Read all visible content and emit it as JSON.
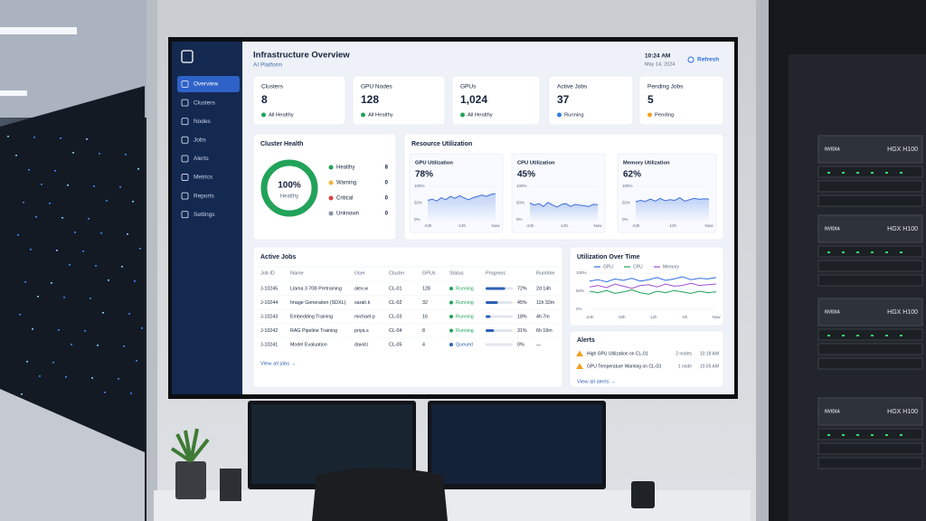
{
  "header": {
    "title": "Infrastructure Overview",
    "subtitle": "AI Platform",
    "time": "10:24 AM",
    "date": "May 14, 2024",
    "refresh": "Refresh"
  },
  "sidebar": {
    "items": [
      "Overview",
      "Clusters",
      "Nodes",
      "Jobs",
      "Alerts",
      "Metrics",
      "Reports",
      "Settings"
    ]
  },
  "stats": [
    {
      "label": "Clusters",
      "value": "8",
      "status": "All Healthy",
      "color": "#22a35a"
    },
    {
      "label": "GPU Nodes",
      "value": "128",
      "status": "All Healthy",
      "color": "#22a35a"
    },
    {
      "label": "GPUs",
      "value": "1,024",
      "status": "All Healthy",
      "color": "#22a35a"
    },
    {
      "label": "Active Jobs",
      "value": "37",
      "status": "Running",
      "color": "#2f7de1"
    },
    {
      "label": "Pending Jobs",
      "value": "5",
      "status": "Pending",
      "color": "#f0a020"
    }
  ],
  "cluster_health": {
    "title": "Cluster Health",
    "percent": {
      "value": 100,
      "label": "100%"
    },
    "caption": "Healthy",
    "color": "#22a35a",
    "legend": [
      {
        "name": "Healthy",
        "count": "8",
        "color": "#22a35a"
      },
      {
        "name": "Warning",
        "count": "0",
        "color": "#f0b43c"
      },
      {
        "name": "Critical",
        "count": "0",
        "color": "#e04040"
      },
      {
        "name": "Unknown",
        "count": "0",
        "color": "#8a93a6"
      }
    ]
  },
  "resource_utilization": {
    "title": "Resource Utilization",
    "panels": [
      {
        "title": "GPU Utilization",
        "value": "78%",
        "ylim": [
          0,
          100
        ],
        "yticks": [
          {
            "value": 100,
            "label": "100%"
          },
          {
            "value": 50,
            "label": "50%"
          },
          {
            "value": 0,
            "label": "0%"
          }
        ],
        "xlabels": [
          "-24h",
          "-12h",
          "Now"
        ],
        "values": [
          58,
          62,
          56,
          66,
          60,
          70,
          64,
          72,
          66,
          60,
          66,
          70,
          74,
          70,
          76,
          78
        ]
      },
      {
        "title": "CPU Utilization",
        "value": "45%",
        "ylim": [
          0,
          100
        ],
        "yticks": [
          {
            "value": 100,
            "label": "100%"
          },
          {
            "value": 50,
            "label": "50%"
          },
          {
            "value": 0,
            "label": "0%"
          }
        ],
        "xlabels": [
          "-24h",
          "-12h",
          "Now"
        ],
        "values": [
          50,
          44,
          48,
          40,
          52,
          44,
          38,
          46,
          48,
          40,
          46,
          44,
          42,
          40,
          46,
          45
        ]
      },
      {
        "title": "Memory Utilization",
        "value": "62%",
        "ylim": [
          0,
          100
        ],
        "yticks": [
          {
            "value": 100,
            "label": "100%"
          },
          {
            "value": 50,
            "label": "50%"
          },
          {
            "value": 0,
            "label": "0%"
          }
        ],
        "xlabels": [
          "-24h",
          "-12h",
          "Now"
        ],
        "values": [
          54,
          58,
          55,
          62,
          56,
          64,
          57,
          60,
          58,
          66,
          56,
          60,
          64,
          61,
          63,
          62
        ]
      }
    ]
  },
  "active_jobs": {
    "title": "Active Jobs",
    "columns": [
      "Job ID",
      "Name",
      "User",
      "Cluster",
      "GPUs",
      "Status",
      "Progress",
      "Runtime"
    ],
    "rows": [
      [
        "J-10245",
        "Llama 3 70B Pretraining",
        "alex.w",
        "CL-01",
        "128",
        "Running",
        "2d 14h"
      ],
      [
        "J-10244",
        "Image Generation (SDXL)",
        "sarah.k",
        "CL-02",
        "32",
        "Running",
        "11h 32m"
      ],
      [
        "J-10243",
        "Embedding Training",
        "michael.p",
        "CL-03",
        "16",
        "Running",
        "4h 7m"
      ],
      [
        "J-10242",
        "RAG Pipeline Training",
        "priya.s",
        "CL-04",
        "8",
        "Running",
        "6h 19m"
      ],
      [
        "J-10241",
        "Model Evaluation",
        "david.l",
        "CL-05",
        "4",
        "Queued",
        "—"
      ]
    ],
    "status_colors": [
      "#22a35a",
      "#22a35a",
      "#22a35a",
      "#22a35a",
      "#2f5fb5"
    ],
    "progress": [
      72,
      45,
      18,
      31,
      0
    ],
    "progress_labels": [
      "72%",
      "45%",
      "18%",
      "31%",
      "0%"
    ],
    "link": "View all jobs →"
  },
  "utilization_over_time": {
    "type": "line",
    "title": "Utilization Over Time",
    "ylim": [
      0,
      100
    ],
    "yticks": [
      {
        "value": 100,
        "label": "100%"
      },
      {
        "value": 50,
        "label": "50%"
      },
      {
        "value": 0,
        "label": "0%"
      }
    ],
    "xlabels": [
      "-24h",
      "-18h",
      "-12h",
      "-6h",
      "Now"
    ],
    "series": [
      {
        "name": "GPU",
        "color": "#2f6fe0",
        "values": [
          78,
          82,
          76,
          84,
          80,
          86,
          78,
          82,
          88,
          80,
          84,
          90,
          82,
          86,
          84,
          88
        ]
      },
      {
        "name": "CPU",
        "color": "#22a35a",
        "values": [
          50,
          46,
          52,
          44,
          48,
          54,
          46,
          42,
          50,
          46,
          52,
          48,
          44,
          50,
          46,
          48
        ]
      },
      {
        "name": "Memory",
        "color": "#a050d0",
        "values": [
          62,
          66,
          60,
          70,
          64,
          58,
          66,
          68,
          62,
          70,
          64,
          66,
          72,
          66,
          68,
          70
        ]
      }
    ]
  },
  "alerts": {
    "title": "Alerts",
    "items": [
      {
        "text": "High GPU Utilization on CL-01",
        "count": "2 nodes",
        "time": "10:18 AM"
      },
      {
        "text": "GPU Temperature Warning on CL-03",
        "count": "1 node",
        "time": "10:05 AM"
      }
    ],
    "link": "View all alerts →"
  },
  "hardware": {
    "brand": "NVIDIA",
    "model": "HGX H100"
  }
}
